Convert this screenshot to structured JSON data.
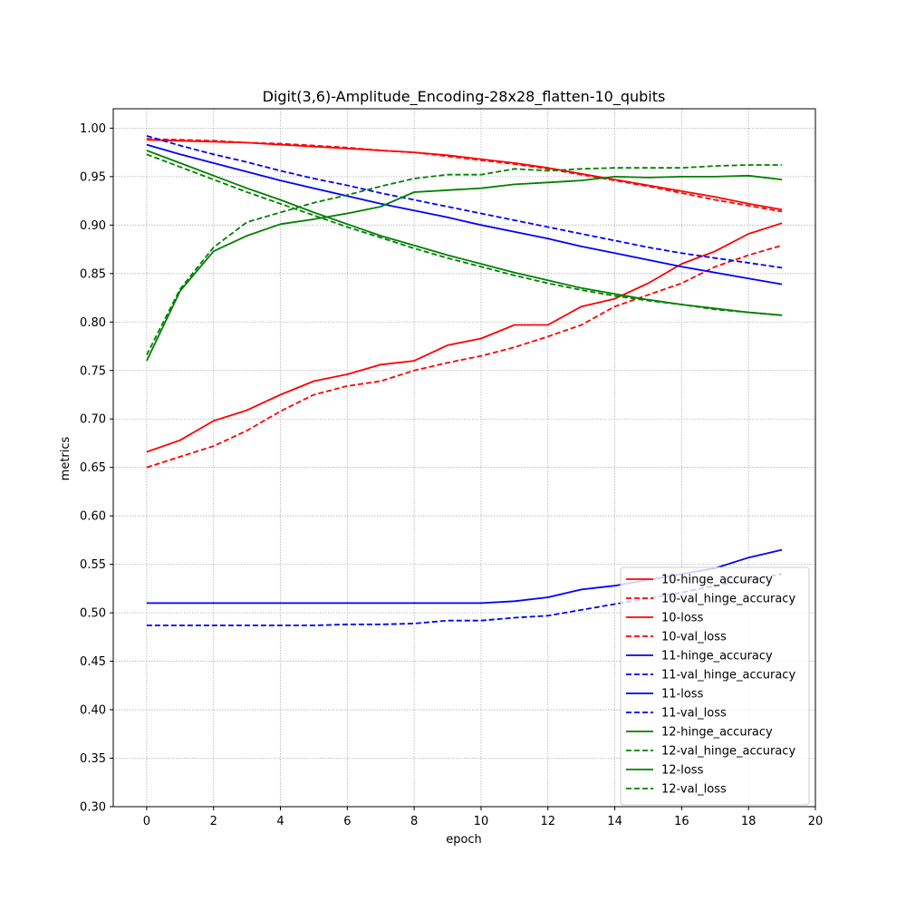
{
  "chart_data": {
    "type": "line",
    "title": "Digit(3,6)-Amplitude_Encoding-28x28_flatten-10_qubits",
    "xlabel": "epoch",
    "ylabel": "metrics",
    "xlim": [
      -1,
      20
    ],
    "ylim": [
      0.3,
      1.02
    ],
    "xticks": [
      "0",
      "2",
      "4",
      "6",
      "8",
      "10",
      "12",
      "14",
      "16",
      "18",
      "20"
    ],
    "yticks": [
      "0.30",
      "0.35",
      "0.40",
      "0.45",
      "0.50",
      "0.55",
      "0.60",
      "0.65",
      "0.70",
      "0.75",
      "0.80",
      "0.85",
      "0.90",
      "0.95",
      "1.00"
    ],
    "grid": true,
    "legend_position": "lower right",
    "x": [
      0,
      1,
      2,
      3,
      4,
      5,
      6,
      7,
      8,
      9,
      10,
      11,
      12,
      13,
      14,
      15,
      16,
      17,
      18,
      19
    ],
    "series": [
      {
        "name": "10-hinge_accuracy",
        "color": "#ff0000",
        "dash": "solid",
        "values": [
          0.666,
          0.678,
          0.698,
          0.709,
          0.725,
          0.739,
          0.746,
          0.756,
          0.76,
          0.776,
          0.783,
          0.797,
          0.797,
          0.816,
          0.824,
          0.84,
          0.86,
          0.873,
          0.891,
          0.902
        ]
      },
      {
        "name": "10-val_hinge_accuracy",
        "color": "#ff0000",
        "dash": "dashed",
        "values": [
          0.65,
          0.661,
          0.672,
          0.688,
          0.708,
          0.725,
          0.734,
          0.739,
          0.75,
          0.758,
          0.765,
          0.774,
          0.785,
          0.797,
          0.816,
          0.828,
          0.84,
          0.857,
          0.869,
          0.879
        ]
      },
      {
        "name": "10-loss",
        "color": "#ff0000",
        "dash": "solid",
        "values": [
          0.988,
          0.987,
          0.986,
          0.985,
          0.983,
          0.981,
          0.979,
          0.977,
          0.975,
          0.972,
          0.968,
          0.964,
          0.959,
          0.953,
          0.947,
          0.941,
          0.935,
          0.929,
          0.922,
          0.916
        ]
      },
      {
        "name": "10-val_loss",
        "color": "#ff0000",
        "dash": "dashed",
        "values": [
          0.989,
          0.988,
          0.987,
          0.985,
          0.984,
          0.982,
          0.98,
          0.977,
          0.975,
          0.971,
          0.967,
          0.963,
          0.958,
          0.952,
          0.946,
          0.94,
          0.933,
          0.926,
          0.92,
          0.914
        ]
      },
      {
        "name": "11-hinge_accuracy",
        "color": "#0000ff",
        "dash": "solid",
        "values": [
          0.51,
          0.51,
          0.51,
          0.51,
          0.51,
          0.51,
          0.51,
          0.51,
          0.51,
          0.51,
          0.51,
          0.512,
          0.516,
          0.524,
          0.528,
          0.534,
          0.54,
          0.546,
          0.557,
          0.565
        ]
      },
      {
        "name": "11-val_hinge_accuracy",
        "color": "#0000ff",
        "dash": "dashed",
        "values": [
          0.487,
          0.487,
          0.487,
          0.487,
          0.487,
          0.487,
          0.488,
          0.488,
          0.489,
          0.492,
          0.492,
          0.495,
          0.497,
          0.503,
          0.509,
          0.515,
          0.521,
          0.528,
          0.534,
          0.54
        ]
      },
      {
        "name": "11-loss",
        "color": "#0000ff",
        "dash": "solid",
        "values": [
          0.983,
          0.973,
          0.964,
          0.955,
          0.946,
          0.938,
          0.93,
          0.922,
          0.915,
          0.908,
          0.9,
          0.893,
          0.886,
          0.878,
          0.871,
          0.864,
          0.857,
          0.851,
          0.845,
          0.839
        ]
      },
      {
        "name": "11-val_loss",
        "color": "#0000ff",
        "dash": "dashed",
        "values": [
          0.992,
          0.982,
          0.973,
          0.965,
          0.956,
          0.948,
          0.941,
          0.933,
          0.926,
          0.919,
          0.912,
          0.905,
          0.898,
          0.891,
          0.884,
          0.877,
          0.871,
          0.866,
          0.861,
          0.856
        ]
      },
      {
        "name": "12-hinge_accuracy",
        "color": "#008000",
        "dash": "solid",
        "values": [
          0.76,
          0.832,
          0.873,
          0.889,
          0.901,
          0.906,
          0.912,
          0.919,
          0.934,
          0.936,
          0.938,
          0.942,
          0.944,
          0.946,
          0.95,
          0.949,
          0.95,
          0.95,
          0.951,
          0.947
        ]
      },
      {
        "name": "12-val_hinge_accuracy",
        "color": "#008000",
        "dash": "dashed",
        "values": [
          0.766,
          0.834,
          0.877,
          0.903,
          0.913,
          0.923,
          0.931,
          0.94,
          0.948,
          0.952,
          0.952,
          0.958,
          0.956,
          0.958,
          0.959,
          0.959,
          0.959,
          0.961,
          0.962,
          0.962
        ]
      },
      {
        "name": "12-loss",
        "color": "#008000",
        "dash": "solid",
        "values": [
          0.977,
          0.964,
          0.951,
          0.938,
          0.926,
          0.913,
          0.901,
          0.889,
          0.879,
          0.869,
          0.86,
          0.851,
          0.843,
          0.835,
          0.829,
          0.823,
          0.818,
          0.814,
          0.81,
          0.807
        ]
      },
      {
        "name": "12-val_loss",
        "color": "#008000",
        "dash": "dashed",
        "values": [
          0.973,
          0.96,
          0.947,
          0.934,
          0.922,
          0.91,
          0.898,
          0.887,
          0.876,
          0.866,
          0.857,
          0.848,
          0.84,
          0.833,
          0.827,
          0.822,
          0.818,
          0.813,
          0.81,
          0.807
        ]
      }
    ]
  }
}
